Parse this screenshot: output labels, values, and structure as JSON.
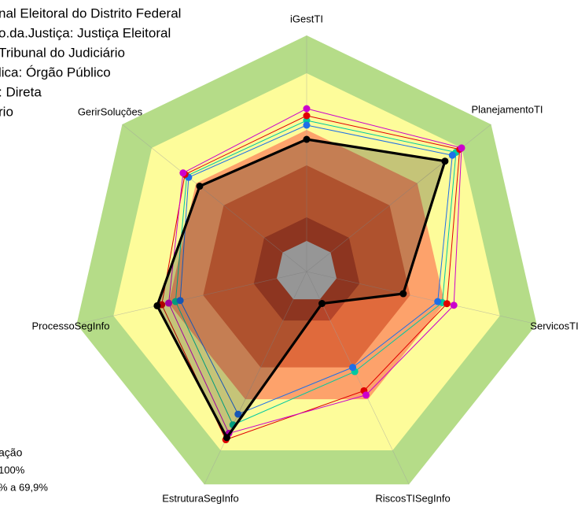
{
  "chart_data": {
    "type": "radar",
    "info_lines": [
      "nal Eleitoral do Distrito Federal",
      "o.da.Justiça: Justiça Eleitoral",
      " Tribunal do Judiciário",
      "lica: Órgão Público",
      ": Direta",
      "rio"
    ],
    "legend_lines": [
      "ação",
      "100%",
      "% a 69,9%"
    ],
    "categories": [
      "iGestTI",
      "PlanejamentoTI",
      "ServicosTI",
      "RiscosTISegInfo",
      "EstruturaSegInfo",
      "ProcessoSegInfo",
      "GerirSoluções"
    ],
    "ylim": [
      0,
      100
    ],
    "bands": [
      {
        "to": 100,
        "color": "#b5dc88"
      },
      {
        "to": 84,
        "color": "#fdfc9a"
      },
      {
        "to": 60,
        "color": "#fda26b"
      },
      {
        "to": 45,
        "color": "#e06a3c"
      },
      {
        "to": 23,
        "color": "#b5452a"
      },
      {
        "to": 13,
        "color": "#c0c0c0"
      }
    ],
    "series": [
      {
        "color": "#00c8a0",
        "values": [
          64,
          81,
          59,
          47,
          72,
          57,
          65
        ]
      },
      {
        "color": "#1e6fe8",
        "values": [
          62,
          79,
          57,
          45,
          67,
          55,
          64
        ]
      },
      {
        "color": "#e00000",
        "values": [
          66,
          83,
          61,
          56,
          79,
          63,
          66
        ]
      },
      {
        "color": "#cc00cc",
        "values": [
          69,
          84,
          64,
          58,
          76,
          60,
          67
        ]
      },
      {
        "color": "#000000",
        "values": [
          56,
          75,
          42,
          15,
          78,
          65,
          58
        ],
        "fill": true
      }
    ]
  }
}
